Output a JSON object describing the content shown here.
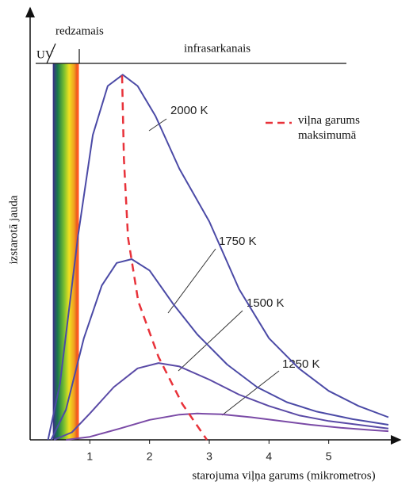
{
  "chart_data": {
    "type": "line",
    "y_title": "izstarotā jauda",
    "x_title": "starojuma viļņa garums (mikrometros)",
    "annotations": [
      {
        "text": "UV"
      },
      {
        "text": "redzamais"
      },
      {
        "text": "infrasarkanais"
      }
    ],
    "visible_range": [
      0.38,
      0.8
    ],
    "xlim": [
      0,
      6
    ],
    "ylim": [
      0,
      100
    ],
    "xticks": [
      1,
      2,
      3,
      4,
      5
    ],
    "series": [
      {
        "name": "2000 K",
        "color": "#4b4aa6",
        "x": [
          0.3,
          0.5,
          0.8,
          1.05,
          1.3,
          1.55,
          1.8,
          2.1,
          2.5,
          3.0,
          3.5,
          4.0,
          4.5,
          5.0,
          5.5,
          6.0
        ],
        "values": [
          0,
          15,
          54,
          81,
          94,
          97,
          94,
          86,
          72,
          58,
          40,
          27,
          19,
          13,
          9,
          6
        ]
      },
      {
        "name": "1750 K",
        "color": "#4b4aa6",
        "x": [
          0.35,
          0.6,
          0.9,
          1.2,
          1.45,
          1.7,
          2.0,
          2.4,
          2.8,
          3.3,
          3.8,
          4.3,
          4.8,
          5.4,
          6.0
        ],
        "values": [
          0,
          8,
          27,
          41,
          47,
          48,
          45,
          36,
          28,
          20,
          14,
          10,
          7.5,
          5.5,
          4
        ]
      },
      {
        "name": "1500 K",
        "color": "#5a4aa6",
        "x": [
          0.4,
          0.7,
          1.0,
          1.4,
          1.8,
          2.15,
          2.5,
          3.0,
          3.5,
          4.0,
          4.5,
          5.0,
          5.5,
          6.0
        ],
        "values": [
          0,
          2,
          7,
          14,
          19,
          20.4,
          19.5,
          16,
          12,
          9,
          6.5,
          5,
          4,
          3
        ]
      },
      {
        "name": "1250 K",
        "color": "#7a4aa6",
        "x": [
          0.6,
          1.0,
          1.5,
          2.0,
          2.5,
          2.8,
          3.2,
          3.7,
          4.2,
          4.7,
          5.2,
          5.7,
          6.0
        ],
        "values": [
          0,
          0.8,
          3,
          5.3,
          6.7,
          7,
          6.8,
          6,
          5,
          4,
          3.2,
          2.6,
          2.3
        ]
      },
      {
        "name": "viļna garums maksimumā",
        "color": "#e8323a",
        "dashed": true,
        "x": [
          1.54,
          1.57,
          1.64,
          1.81,
          2.15,
          2.55,
          2.96
        ],
        "values": [
          96.8,
          74.7,
          53.7,
          36.8,
          22,
          9.5,
          0
        ]
      }
    ]
  }
}
